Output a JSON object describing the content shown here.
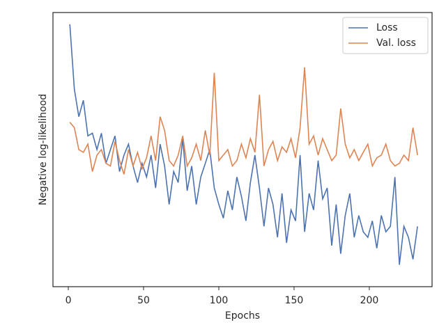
{
  "chart_data": {
    "type": "line",
    "xlabel": "Epochs",
    "ylabel": "Negative log-likelihood",
    "x": [
      1,
      4,
      7,
      10,
      13,
      16,
      19,
      22,
      25,
      28,
      31,
      34,
      37,
      40,
      43,
      46,
      49,
      52,
      55,
      58,
      61,
      64,
      67,
      70,
      73,
      76,
      79,
      82,
      85,
      88,
      91,
      94,
      97,
      100,
      103,
      106,
      109,
      112,
      115,
      118,
      121,
      124,
      127,
      130,
      133,
      136,
      139,
      142,
      145,
      148,
      151,
      154,
      157,
      160,
      163,
      166,
      169,
      172,
      175,
      178,
      181,
      184,
      187,
      190,
      193,
      196,
      199,
      202,
      205,
      208,
      211,
      214,
      217,
      220,
      223,
      226,
      229,
      232
    ],
    "series": [
      {
        "name": "Loss",
        "color": "#4c72b0",
        "values": [
          95.7,
          72,
          62,
          68,
          55,
          56,
          50,
          56,
          45,
          50,
          55,
          42,
          48,
          52,
          44,
          38,
          45,
          40,
          48,
          36,
          52,
          44,
          30,
          42,
          38,
          54,
          35,
          44,
          30,
          40,
          45,
          50,
          36,
          30,
          25,
          35,
          28,
          40,
          33,
          24,
          38,
          48,
          36,
          22,
          36,
          30,
          18,
          34,
          16,
          28,
          24,
          48,
          20,
          34,
          28,
          46,
          32,
          36,
          15,
          30,
          12,
          26,
          34,
          18,
          26,
          20,
          18,
          24,
          14,
          26,
          20,
          22,
          40,
          8,
          22,
          18,
          10,
          22
        ]
      },
      {
        "name": "Val. loss",
        "color": "#dd8452",
        "values": [
          60,
          58,
          50,
          49,
          52,
          42,
          48,
          50,
          45,
          44,
          53,
          46,
          41,
          50,
          44,
          49,
          43,
          47,
          55,
          46,
          62,
          57,
          46,
          44,
          48,
          55,
          44,
          47,
          52,
          46,
          57,
          48,
          78,
          46,
          48,
          50,
          44,
          46,
          52,
          47,
          54,
          49,
          70,
          44,
          50,
          53,
          46,
          51,
          49,
          54,
          47,
          58,
          80,
          52,
          55,
          48,
          54,
          50,
          46,
          48,
          65,
          52,
          47,
          50,
          46,
          49,
          52,
          44,
          47,
          48,
          52,
          46,
          44,
          45,
          48,
          46,
          58,
          48
        ]
      }
    ],
    "xlim": [
      -10.2,
      241.7
    ],
    "xticks": [
      0,
      50,
      100,
      150,
      200
    ],
    "ylim": [
      0,
      100
    ],
    "grid": false,
    "legend": "upper right"
  }
}
